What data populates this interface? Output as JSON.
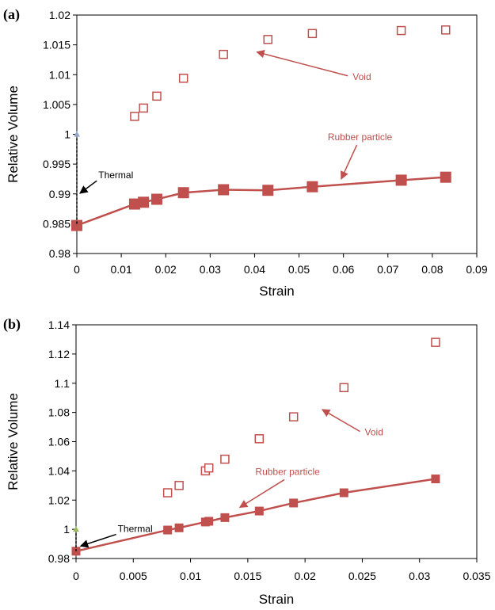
{
  "colors": {
    "series": "#c0504d",
    "annotation_text": "#c0504d",
    "axis": "#000000",
    "thermal_marker_a": "#95a8c8",
    "thermal_marker_b": "#9bbb59"
  },
  "chart_data": [
    {
      "panel_label": "(a)",
      "type": "scatter",
      "xlabel": "Strain",
      "ylabel": "Relative Volume",
      "xlim": [
        0,
        0.09
      ],
      "ylim": [
        0.98,
        1.02
      ],
      "x_ticks": [
        "0",
        "0.01",
        "0.02",
        "0.03",
        "0.04",
        "0.05",
        "0.06",
        "0.07",
        "0.08",
        "0.09"
      ],
      "y_ticks": [
        "0.98",
        "0.985",
        "0.99",
        "0.995",
        "1",
        "1.005",
        "1.01",
        "1.015",
        "1.02"
      ],
      "grid": false,
      "legend": "none",
      "series": [
        {
          "label": "Void",
          "marker": "open-square",
          "line": false,
          "x": [
            0.013,
            0.015,
            0.018,
            0.024,
            0.033,
            0.043,
            0.053,
            0.073,
            0.083
          ],
          "y": [
            1.003,
            1.0044,
            1.0064,
            1.0094,
            1.0134,
            1.0159,
            1.0169,
            1.0174,
            1.0175
          ]
        },
        {
          "label": "Rubber particle",
          "marker": "filled-square",
          "line": true,
          "x": [
            0,
            0.013,
            0.015,
            0.018,
            0.024,
            0.033,
            0.043,
            0.053,
            0.073,
            0.083
          ],
          "y": [
            0.9847,
            0.9883,
            0.9886,
            0.9891,
            0.9902,
            0.9907,
            0.9906,
            0.9912,
            0.9923,
            0.9928
          ]
        },
        {
          "label": "Thermal",
          "marker": "triangle",
          "line": "dashed",
          "x": [
            0,
            0
          ],
          "y": [
            1.0,
            0.9847
          ]
        }
      ],
      "annotations": [
        {
          "text": "Void",
          "from": [
            0.061,
            1.0098
          ],
          "to": [
            0.0405,
            1.0138
          ]
        },
        {
          "text": "Rubber particle",
          "from": [
            0.063,
            0.9982
          ],
          "to": [
            0.0595,
            0.9925
          ]
        },
        {
          "text": "Thermal",
          "from": [
            0.0045,
            0.9922
          ],
          "to": [
            0.0007,
            0.9901
          ]
        }
      ]
    },
    {
      "panel_label": "(b)",
      "type": "scatter",
      "xlabel": "Strain",
      "ylabel": "Relative Volume",
      "xlim": [
        0,
        0.035
      ],
      "ylim": [
        0.98,
        1.14
      ],
      "x_ticks": [
        "0",
        "0.005",
        "0.01",
        "0.015",
        "0.02",
        "0.025",
        "0.03",
        "0.035"
      ],
      "y_ticks": [
        "0.98",
        "1",
        "1.02",
        "1.04",
        "1.06",
        "1.08",
        "1.1",
        "1.12",
        "1.14"
      ],
      "grid": false,
      "legend": "none",
      "series": [
        {
          "label": "Void",
          "marker": "open-square",
          "line": false,
          "x": [
            0.008,
            0.009,
            0.0113,
            0.0116,
            0.013,
            0.016,
            0.019,
            0.0234,
            0.0314
          ],
          "y": [
            1.025,
            1.03,
            1.04,
            1.042,
            1.048,
            1.062,
            1.077,
            1.097,
            1.128
          ]
        },
        {
          "label": "Rubber particle",
          "marker": "filled-square",
          "line": true,
          "x": [
            0,
            0.008,
            0.009,
            0.0113,
            0.0116,
            0.013,
            0.016,
            0.019,
            0.0234,
            0.0314
          ],
          "y": [
            0.985,
            0.9995,
            1.001,
            1.005,
            1.0055,
            1.008,
            1.0125,
            1.018,
            1.025,
            1.0345
          ]
        },
        {
          "label": "Thermal",
          "marker": "triangle",
          "line": "dashed",
          "x": [
            0,
            0
          ],
          "y": [
            1.0,
            0.985
          ]
        }
      ],
      "annotations": [
        {
          "text": "Void",
          "from": [
            0.0248,
            1.067
          ],
          "to": [
            0.0215,
            1.082
          ]
        },
        {
          "text": "Rubber particle",
          "from": [
            0.0182,
            1.034
          ],
          "to": [
            0.0143,
            1.015
          ]
        },
        {
          "text": "Thermal",
          "from": [
            0.0035,
            0.9965
          ],
          "to": [
            0.0004,
            0.9885
          ]
        }
      ]
    }
  ]
}
